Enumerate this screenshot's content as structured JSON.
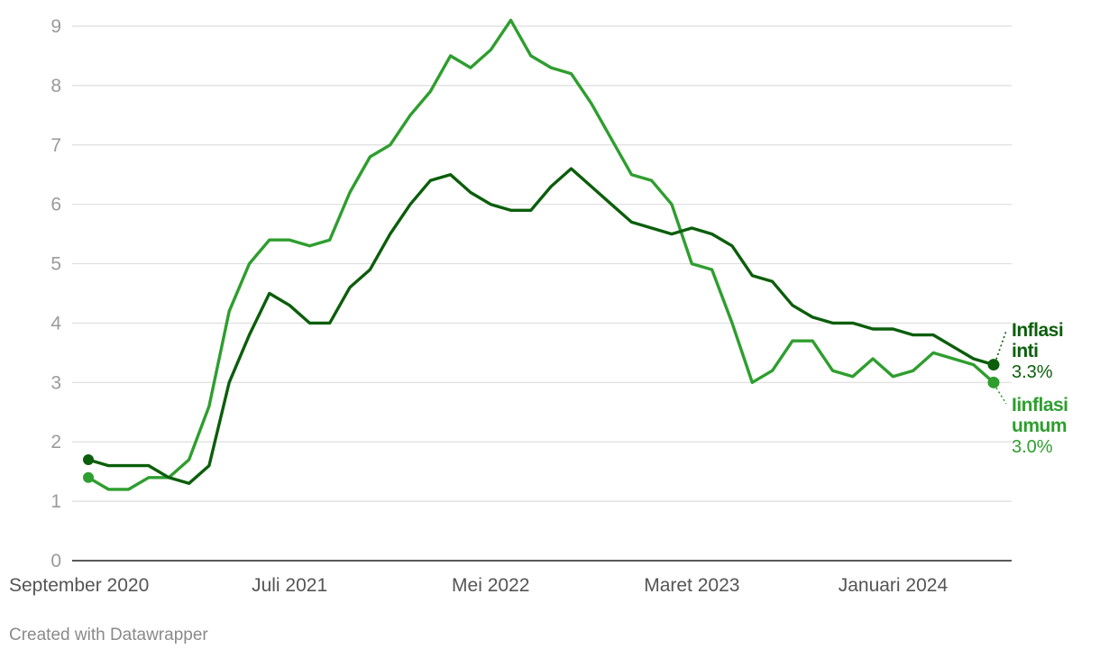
{
  "footer": "Created with Datawrapper",
  "chart_data": {
    "type": "line",
    "x_axis_labels": [
      "September 2020",
      "Juli 2021",
      "Mei 2022",
      "Maret 2023",
      "Januari 2024"
    ],
    "x_axis_label_index": [
      0,
      10,
      20,
      30,
      40
    ],
    "y_ticks": [
      0,
      1,
      2,
      3,
      4,
      5,
      6,
      7,
      8,
      9
    ],
    "ylim": [
      0,
      9
    ],
    "grid": true,
    "legend": "inline labels at line ends (right)",
    "series": [
      {
        "name": "Inflasi inti",
        "name_lines": [
          "Inflasi",
          "inti"
        ],
        "end_value_label": "3.3%",
        "color": "#0b5e0b",
        "values": [
          1.7,
          1.6,
          1.6,
          1.6,
          1.4,
          1.3,
          1.6,
          3.0,
          3.8,
          4.5,
          4.3,
          4.0,
          4.0,
          4.6,
          4.9,
          5.5,
          6.0,
          6.4,
          6.5,
          6.2,
          6.0,
          5.9,
          5.9,
          6.3,
          6.6,
          6.3,
          6.0,
          5.7,
          5.6,
          5.5,
          5.6,
          5.5,
          5.3,
          4.8,
          4.7,
          4.3,
          4.1,
          4.0,
          4.0,
          3.9,
          3.9,
          3.8,
          3.8,
          3.6,
          3.4,
          3.3
        ]
      },
      {
        "name": "Iinflasi umum",
        "name_lines": [
          "Iinflasi",
          "umum"
        ],
        "end_value_label": "3.0%",
        "color": "#2e9e2e",
        "values": [
          1.4,
          1.2,
          1.2,
          1.4,
          1.4,
          1.7,
          2.6,
          4.2,
          5.0,
          5.4,
          5.4,
          5.3,
          5.4,
          6.2,
          6.8,
          7.0,
          7.5,
          7.9,
          8.5,
          8.3,
          8.6,
          9.1,
          8.5,
          8.3,
          8.2,
          7.7,
          7.1,
          6.5,
          6.4,
          6.0,
          5.0,
          4.9,
          4.0,
          3.0,
          3.2,
          3.7,
          3.7,
          3.2,
          3.1,
          3.4,
          3.1,
          3.2,
          3.5,
          3.4,
          3.3,
          3.0
        ]
      }
    ]
  }
}
